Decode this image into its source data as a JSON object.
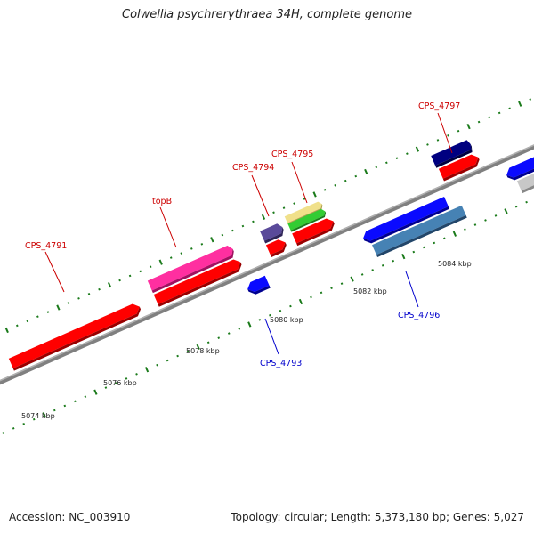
{
  "header": {
    "title": "Colwellia psychrerythraea 34H, complete genome"
  },
  "footer": {
    "accession": "Accession: NC_003910",
    "summary": "Topology: circular; Length: 5,373,180 bp; Genes: 5,027"
  },
  "map": {
    "kbp_labels": [
      "5074 kbp",
      "5076 kbp",
      "5078 kbp",
      "5080 kbp",
      "5082 kbp",
      "5084 kbp"
    ],
    "genes": [
      {
        "label": "CPS_4791",
        "label_color": "#cc0000"
      },
      {
        "label": "topB",
        "label_color": "#cc0000"
      },
      {
        "label": "CPS_4793",
        "label_color": "#0000cc"
      },
      {
        "label": "CPS_4794",
        "label_color": "#cc0000"
      },
      {
        "label": "CPS_4795",
        "label_color": "#cc0000"
      },
      {
        "label": "CPS_4796",
        "label_color": "#0000cc"
      },
      {
        "label": "CPS_4797",
        "label_color": "#cc0000"
      }
    ],
    "colors": {
      "red": "#ff0000",
      "magenta": "#ff2fa0",
      "blue": "#0a0aff",
      "purple": "#5a4a9a",
      "yellow": "#f0e08a",
      "green": "#33cc33",
      "steelblue": "#4682b4",
      "navy": "#000080",
      "grey": "#c8c8c8",
      "tick": "#1a7a1a",
      "axis": "#808080"
    }
  }
}
